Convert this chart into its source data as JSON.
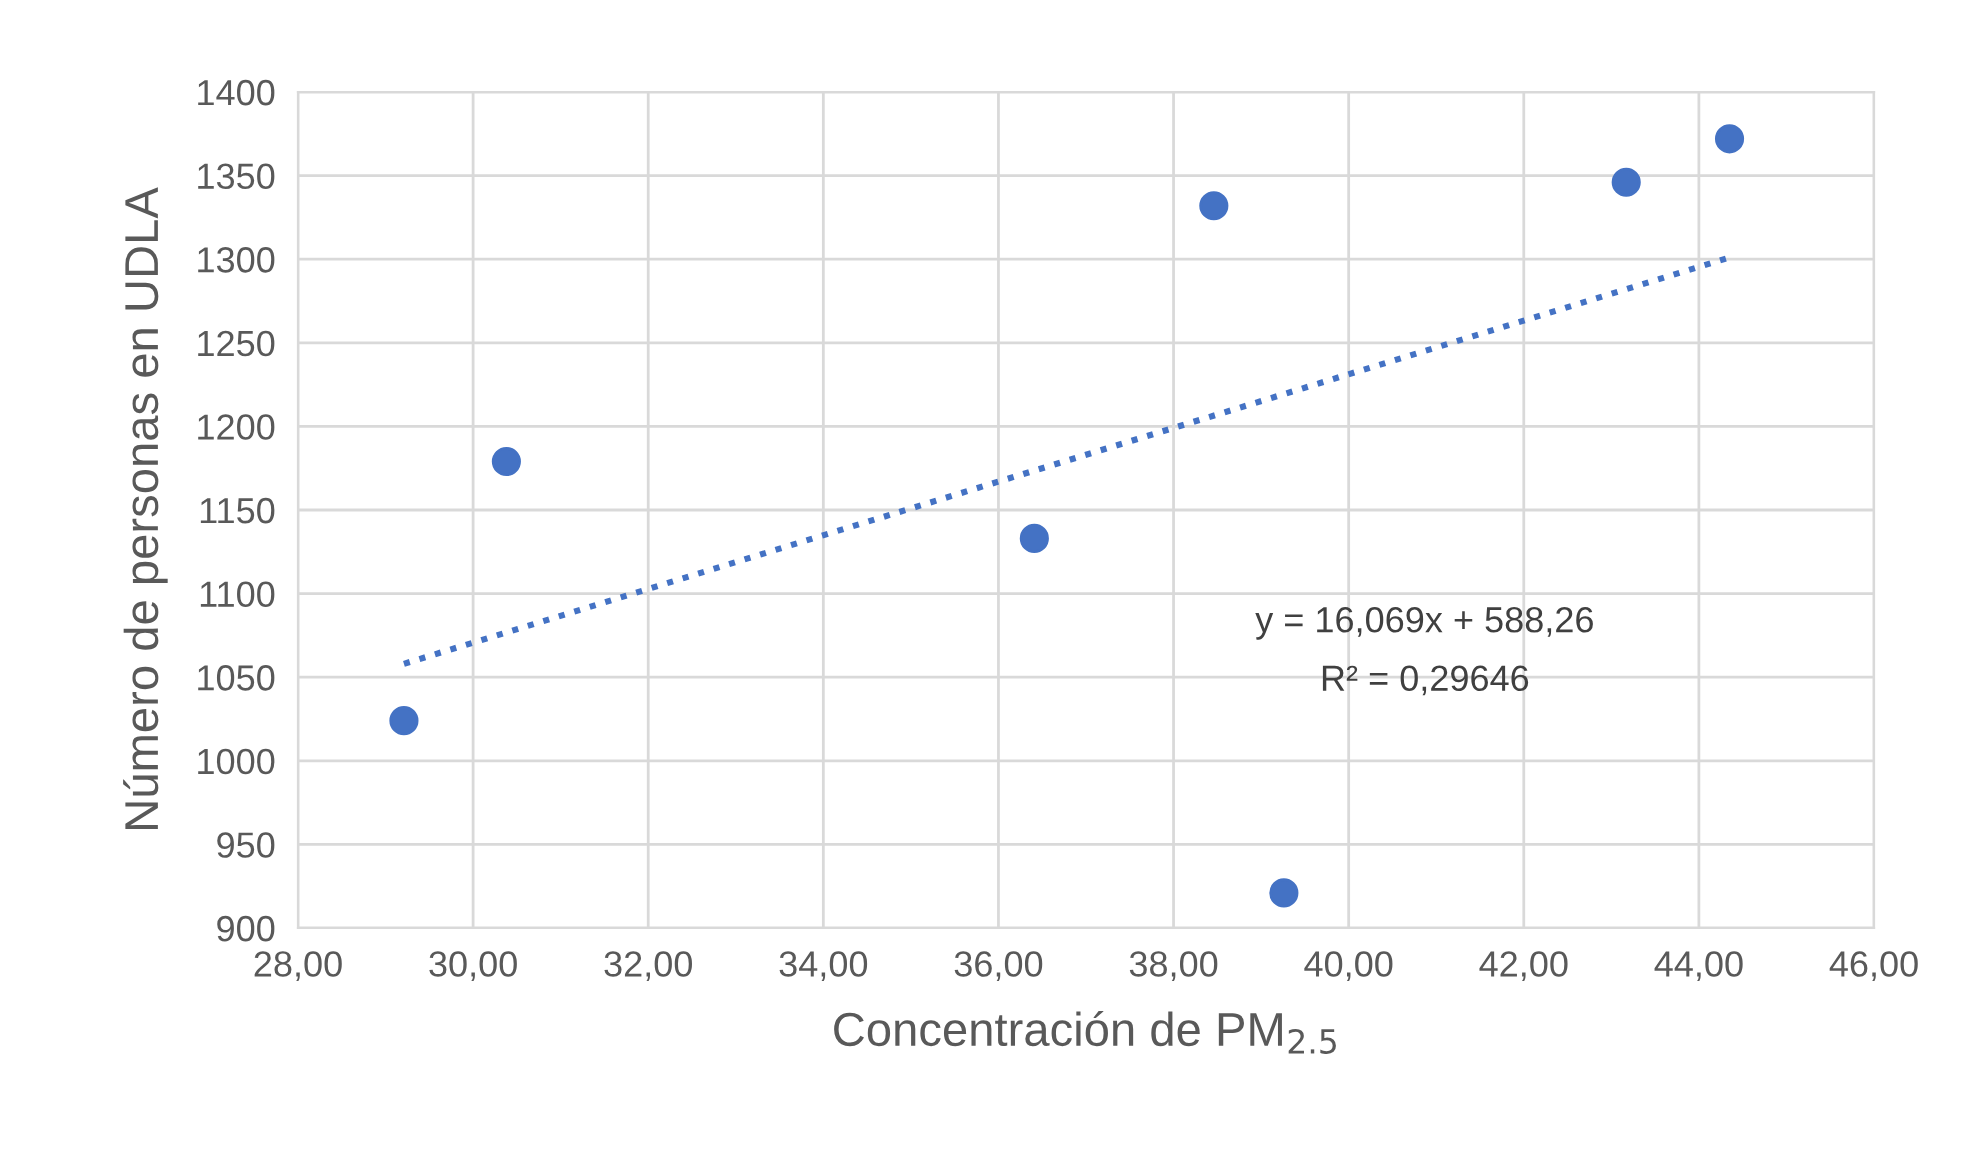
{
  "chart_data": {
    "type": "scatter",
    "xlabel": "Concentración de PM$_{2.5}$",
    "ylabel": "Número de personas en UDLA",
    "series": [
      {
        "color": "#4472c4",
        "marker": "circle",
        "x": [
          29.21,
          30.38,
          36.41,
          38.46,
          39.26,
          43.17,
          44.35
        ],
        "values": [
          1024,
          1179,
          1133,
          1332,
          921,
          1346,
          1372
        ]
      },
      {
        "type": "line",
        "color": "#4472c4",
        "line_style": "dotted",
        "marker": "none",
        "x": [
          29.21,
          44.35
        ],
        "values": [
          1058,
          1301
        ]
      }
    ],
    "annotations": [
      "y = 16,069x + 588,26",
      "R² = 0,29646"
    ],
    "xlim": [
      28,
      46
    ],
    "ylim": [
      900,
      1400
    ],
    "xticks": [
      {
        "value": 28,
        "label": "28,00"
      },
      {
        "value": 30,
        "label": "30,00"
      },
      {
        "value": 32,
        "label": "32,00"
      },
      {
        "value": 34,
        "label": "34,00"
      },
      {
        "value": 36,
        "label": "36,00"
      },
      {
        "value": 38,
        "label": "38,00"
      },
      {
        "value": 40,
        "label": "40,00"
      },
      {
        "value": 42,
        "label": "42,00"
      },
      {
        "value": 44,
        "label": "44,00"
      },
      {
        "value": 46,
        "label": "46,00"
      }
    ],
    "yticks": [
      900,
      950,
      1000,
      1050,
      1100,
      1150,
      1200,
      1250,
      1300,
      1350,
      1400
    ],
    "grid": true
  }
}
